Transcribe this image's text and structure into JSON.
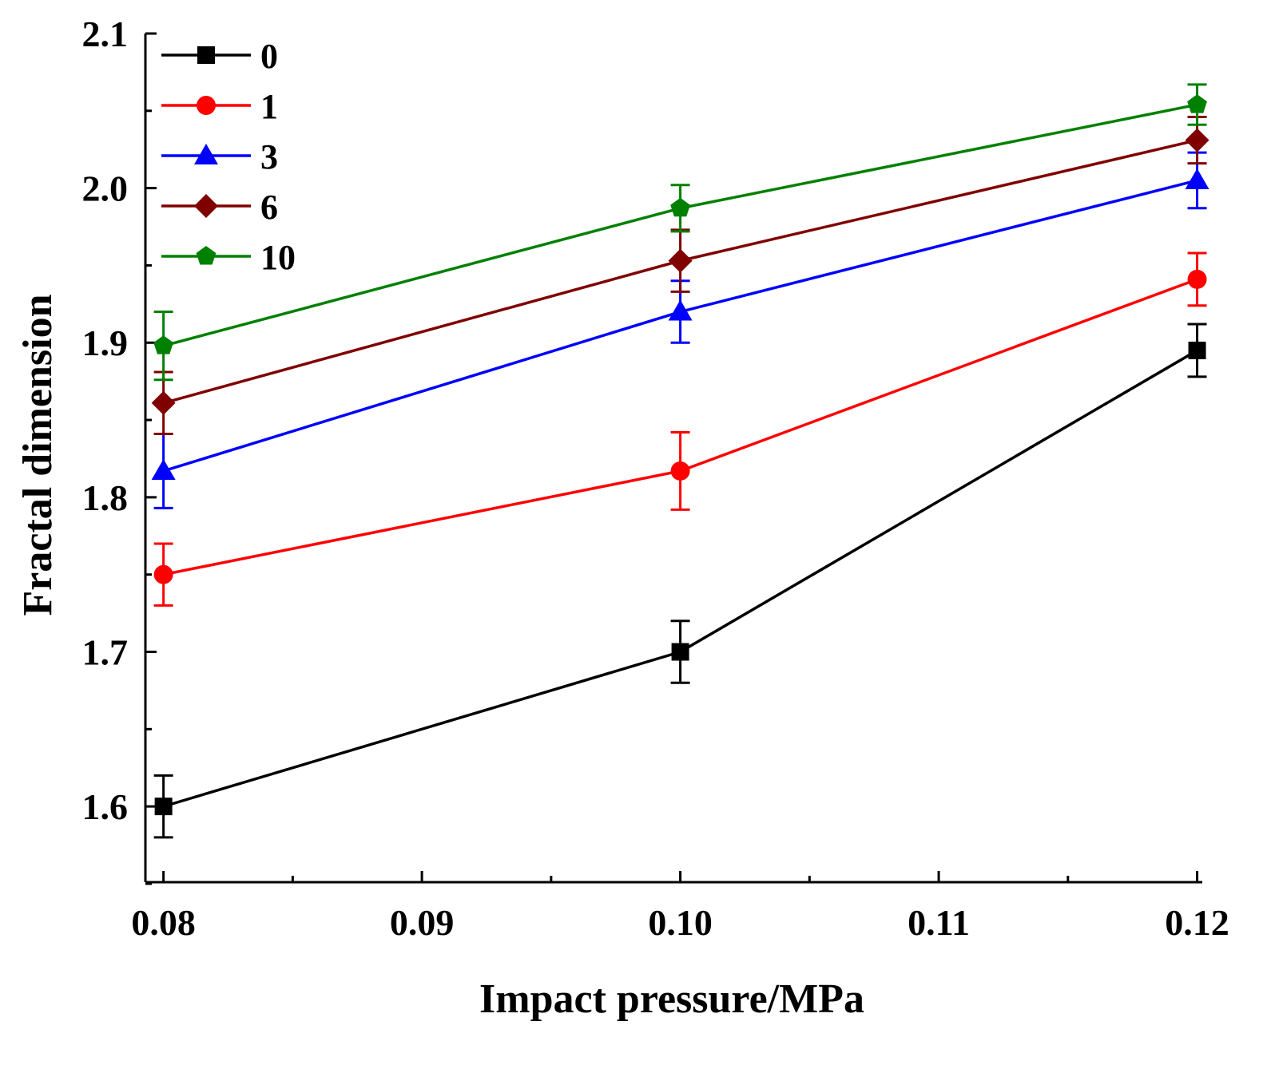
{
  "chart_data": {
    "type": "line",
    "title": "",
    "xlabel": "Impact pressure/MPa",
    "ylabel": "Fractal dimension",
    "x": [
      0.08,
      0.1,
      0.12
    ],
    "xlim": [
      0.0793,
      0.1202
    ],
    "ylim": [
      1.551,
      2.1
    ],
    "xticks": [
      "0.08",
      "0.09",
      "0.10",
      "0.11",
      "0.12"
    ],
    "xtick_values": [
      0.08,
      0.09,
      0.1,
      0.11,
      0.12
    ],
    "yticks": [
      "1.6",
      "1.7",
      "1.8",
      "1.9",
      "2.0",
      "2.1"
    ],
    "ytick_values": [
      1.6,
      1.7,
      1.8,
      1.9,
      2.0,
      2.1
    ],
    "grid": false,
    "legend_position": "top-left",
    "series": [
      {
        "name": "0",
        "color": "#000000",
        "marker": "square",
        "values": [
          1.6,
          1.7,
          1.895
        ],
        "errors": [
          0.02,
          0.02,
          0.017
        ]
      },
      {
        "name": "1",
        "color": "#ff0000",
        "marker": "circle",
        "values": [
          1.75,
          1.817,
          1.941
        ],
        "errors": [
          0.02,
          0.025,
          0.017
        ]
      },
      {
        "name": "3",
        "color": "#0000ff",
        "marker": "triangle",
        "values": [
          1.817,
          1.92,
          2.005
        ],
        "errors": [
          0.024,
          0.02,
          0.018
        ]
      },
      {
        "name": "6",
        "color": "#800000",
        "marker": "diamond",
        "values": [
          1.861,
          1.953,
          2.031
        ],
        "errors": [
          0.02,
          0.02,
          0.015
        ]
      },
      {
        "name": "10",
        "color": "#008000",
        "marker": "pentagon",
        "values": [
          1.898,
          1.987,
          2.054
        ],
        "errors": [
          0.022,
          0.015,
          0.013
        ]
      }
    ]
  }
}
